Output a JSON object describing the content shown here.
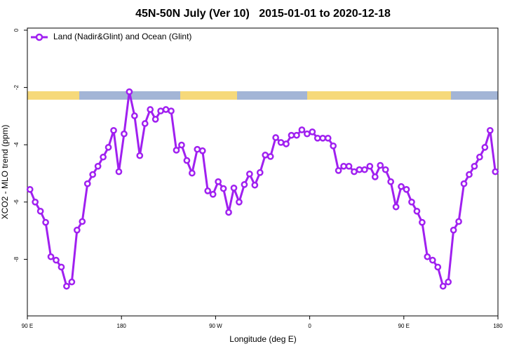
{
  "chart_data": {
    "type": "line",
    "title": "45N-50N July (Ver 10)   2015-01-01 to 2020-12-18",
    "x_label": "Longitude (deg E)",
    "y_label": "XCO2 - MLO trend (ppm)",
    "xlim": [
      90,
      540
    ],
    "ylim": [
      -10,
      0
    ],
    "xticks": [
      {
        "value": 90,
        "label": "90 E"
      },
      180,
      {
        "value": 270,
        "label": "90 W"
      },
      {
        "value": 360,
        "label": "0"
      },
      {
        "value": 450,
        "label": "90 E"
      },
      {
        "value": 540,
        "label": "180"
      }
    ],
    "yticks": [
      0,
      -2,
      -4,
      -6,
      -8
    ],
    "legend": "top-left",
    "x": [
      92.5,
      97.5,
      102.5,
      107.5,
      112.5,
      117.5,
      122.5,
      127.5,
      132.5,
      137.5,
      142.5,
      147.5,
      152.5,
      157.5,
      162.5,
      167.5,
      172.5,
      177.5,
      182.5,
      187.5,
      192.5,
      197.5,
      202.5,
      207.5,
      212.5,
      217.5,
      222.5,
      227.5,
      232.5,
      237.5,
      242.5,
      247.5,
      252.5,
      257.5,
      262.5,
      267.5,
      272.5,
      277.5,
      282.5,
      287.5,
      292.5,
      297.5,
      302.5,
      307.5,
      312.5,
      317.5,
      322.5,
      327.5,
      332.5,
      337.5,
      342.5,
      347.5,
      352.5,
      357.5,
      362.5,
      367.5,
      372.5,
      377.5,
      382.5,
      387.5,
      392.5,
      397.5,
      402.5,
      407.5,
      412.5,
      417.5,
      422.5,
      427.5,
      432.5,
      437.5,
      442.5,
      447.5,
      452.5,
      457.5,
      462.5,
      467.5,
      472.5,
      477.5,
      482.5,
      487.5,
      492.5,
      497.5,
      502.5,
      507.5,
      512.5,
      517.5,
      522.5,
      527.5,
      532.5,
      537.5
    ],
    "series": [
      {
        "name": "Land (Nadir&Glint) and Ocean (Glint)",
        "color": "#a020f0",
        "values": [
          -5.56,
          -6.0,
          -6.32,
          -6.71,
          -7.91,
          -8.03,
          -8.27,
          -8.94,
          -8.79,
          -6.98,
          -6.68,
          -5.36,
          -5.04,
          -4.75,
          -4.43,
          -4.09,
          -3.5,
          -4.94,
          -3.62,
          -2.15,
          -2.99,
          -4.38,
          -3.26,
          -2.77,
          -3.11,
          -2.82,
          -2.77,
          -2.82,
          -4.19,
          -4.01,
          -4.55,
          -4.99,
          -4.16,
          -4.21,
          -5.61,
          -5.73,
          -5.29,
          -5.53,
          -6.36,
          -5.51,
          -6.0,
          -5.39,
          -5.02,
          -5.41,
          -4.97,
          -4.36,
          -4.41,
          -3.75,
          -3.92,
          -3.97,
          -3.67,
          -3.67,
          -3.48,
          -3.62,
          -3.55,
          -3.77,
          -3.77,
          -3.77,
          -4.04,
          -4.9,
          -4.75,
          -4.75,
          -4.94,
          -4.87,
          -4.87,
          -4.75,
          -5.12,
          -4.72,
          -4.87,
          -5.29,
          -6.17,
          -5.46,
          -5.56,
          -6.0,
          -6.32,
          -6.71,
          -7.91,
          -8.03,
          -8.27,
          -8.94,
          -8.79,
          -6.98,
          -6.68,
          -5.36,
          -5.04,
          -4.75,
          -4.43,
          -4.09,
          -3.5,
          -4.94
        ]
      }
    ]
  }
}
